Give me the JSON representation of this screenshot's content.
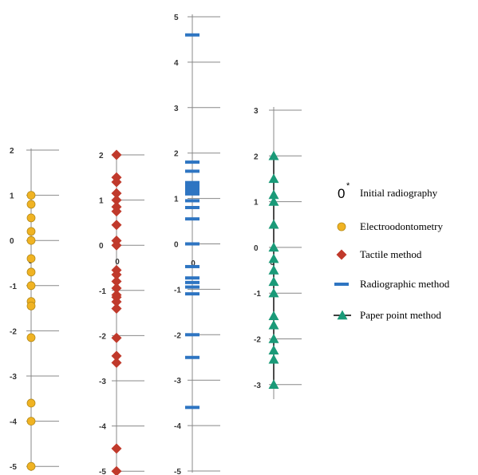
{
  "chart_data": [
    {
      "type": "scatter",
      "series": [
        {
          "name": "Electroodontometry",
          "values": [
            1.0,
            0.8,
            0.5,
            0.2,
            0.0,
            -0.4,
            -0.7,
            -1.0,
            -1.35,
            -1.45,
            -2.15,
            -3.6,
            -4.0,
            -5.0
          ]
        }
      ],
      "ylim": [
        -5,
        2
      ],
      "ticks": [
        "2",
        "1",
        "0",
        "-1",
        "-2",
        "-3",
        "-4",
        "-5"
      ],
      "origin_label": "0",
      "marker": "circle",
      "color": "#f0b323"
    },
    {
      "type": "scatter",
      "series": [
        {
          "name": "Tactile method",
          "values": [
            2.0,
            1.5,
            1.4,
            1.15,
            1.0,
            0.85,
            0.75,
            0.45,
            0.1,
            0.0,
            -0.55,
            -0.65,
            -0.8,
            -0.95,
            -1.1,
            -1.15,
            -1.25,
            -1.4,
            -2.05,
            -2.45,
            -2.6,
            -4.5,
            -5.0
          ]
        }
      ],
      "ylim": [
        -5,
        2
      ],
      "ticks": [
        "2",
        "1",
        "0",
        "-1",
        "-2",
        "-3",
        "-4",
        "-5"
      ],
      "origin_label": "0",
      "marker": "diamond",
      "color": "#c0392b"
    },
    {
      "type": "scatter",
      "series": [
        {
          "name": "Radiographic method",
          "values": [
            4.6,
            1.8,
            1.6,
            1.35,
            1.3,
            1.25,
            1.2,
            1.15,
            1.1,
            0.95,
            0.8,
            0.55,
            0.0,
            -0.5,
            -0.75,
            -0.85,
            -0.95,
            -1.1,
            -2.0,
            -2.5,
            -3.6
          ]
        }
      ],
      "ylim": [
        -5,
        5
      ],
      "ticks": [
        "5",
        "4",
        "3",
        "2",
        "1",
        "0",
        "-1",
        "-2",
        "-3",
        "-4",
        "-5"
      ],
      "origin_label": "0",
      "marker": "dash",
      "color": "#2e75c2"
    },
    {
      "type": "line",
      "series": [
        {
          "name": "Paper point method",
          "values": [
            2.0,
            1.5,
            1.15,
            1.0,
            0.5,
            0.0,
            -0.25,
            -0.5,
            -0.75,
            -1.0,
            -1.5,
            -1.7,
            -2.0,
            -2.25,
            -2.45,
            -3.0
          ]
        }
      ],
      "ylim": [
        -3,
        3
      ],
      "ticks": [
        "3",
        "2",
        "1",
        "0",
        "-1",
        "-2",
        "-3"
      ],
      "origin_label": "0",
      "marker": "triangle",
      "color": "#1a9a78"
    }
  ],
  "legend": {
    "placement": "right",
    "items": [
      {
        "label": "Initial radiography",
        "icon": "zero-star",
        "text": "0",
        "star": "*"
      },
      {
        "label": "Electroodontometry",
        "icon": "circle",
        "color": "#f0b323"
      },
      {
        "label": "Tactile method",
        "icon": "diamond",
        "color": "#c0392b"
      },
      {
        "label": "Radiographic method",
        "icon": "dash",
        "color": "#2e75c2"
      },
      {
        "label": "Paper point method",
        "icon": "line-triangle",
        "color": "#1a9a78"
      }
    ]
  }
}
